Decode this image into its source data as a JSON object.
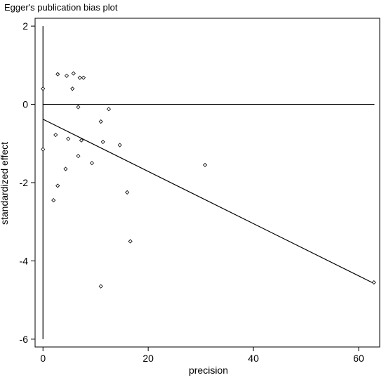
{
  "chart_data": {
    "type": "scatter",
    "title": "Egger's publication bias plot",
    "xlabel": "precision",
    "ylabel": "standardized effect",
    "xlim": [
      -1.5,
      64
    ],
    "ylim": [
      -6.2,
      2.2
    ],
    "x_ticks": [
      0,
      20,
      40,
      60
    ],
    "y_ticks": [
      2,
      0,
      -2,
      -4,
      -6
    ],
    "grid": false,
    "legend": "none",
    "reference_line_y": 0,
    "fit_line": {
      "intercept": -0.38,
      "slope": -0.0667
    },
    "points": [
      {
        "x": 0,
        "y": 0.4
      },
      {
        "x": 0,
        "y": -1.15
      },
      {
        "x": 2.0,
        "y": -2.45
      },
      {
        "x": 2.4,
        "y": -0.78
      },
      {
        "x": 2.8,
        "y": 0.77
      },
      {
        "x": 2.8,
        "y": -2.08
      },
      {
        "x": 4.3,
        "y": -1.65
      },
      {
        "x": 4.5,
        "y": 0.73
      },
      {
        "x": 4.8,
        "y": -0.88
      },
      {
        "x": 5.6,
        "y": 0.4
      },
      {
        "x": 5.8,
        "y": 0.79
      },
      {
        "x": 6.7,
        "y": -0.07
      },
      {
        "x": 6.7,
        "y": -1.32
      },
      {
        "x": 7.0,
        "y": 0.68
      },
      {
        "x": 7.3,
        "y": -0.92
      },
      {
        "x": 7.7,
        "y": 0.68
      },
      {
        "x": 9.3,
        "y": -1.5
      },
      {
        "x": 11.0,
        "y": -0.44
      },
      {
        "x": 11.0,
        "y": -4.65
      },
      {
        "x": 11.4,
        "y": -0.96
      },
      {
        "x": 12.5,
        "y": -0.12
      },
      {
        "x": 14.6,
        "y": -1.04
      },
      {
        "x": 16.0,
        "y": -2.25
      },
      {
        "x": 16.6,
        "y": -3.5
      },
      {
        "x": 30.8,
        "y": -1.55
      },
      {
        "x": 62.9,
        "y": -4.55
      }
    ]
  }
}
